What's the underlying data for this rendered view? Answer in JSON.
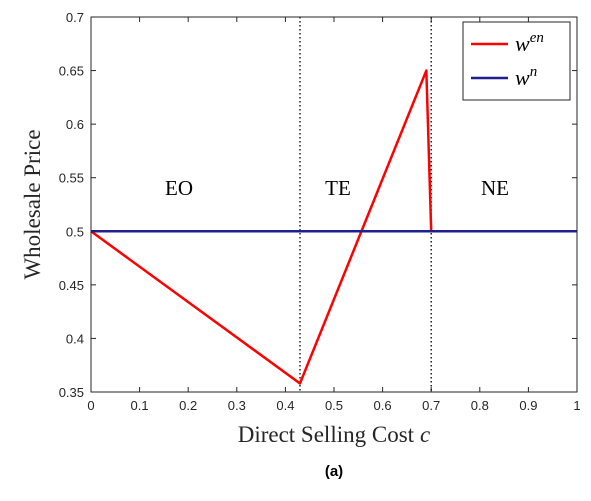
{
  "chart_data": {
    "type": "line",
    "ylabel": "Wholesale Price",
    "xlabel": "Direct Selling Cost",
    "xlabel_var": "c",
    "caption": "(a)",
    "xlim": [
      0,
      1
    ],
    "xticks": [
      0,
      0.1,
      0.2,
      0.3,
      0.4,
      0.5,
      0.6,
      0.7,
      0.8,
      0.9,
      1
    ],
    "ylim": [
      0.35,
      0.7
    ],
    "yticks": [
      0.35,
      0.4,
      0.45,
      0.5,
      0.55,
      0.6,
      0.65,
      0.7
    ],
    "vlines": [
      0.43,
      0.7
    ],
    "annotations": [
      {
        "text": "EO"
      },
      {
        "text": "TE"
      },
      {
        "text": "NE"
      }
    ],
    "legend": "top-right",
    "series": [
      {
        "name": "w",
        "name_sup": "en",
        "color": "#ff0000",
        "x": [
          0,
          0.43,
          0.69,
          0.7,
          1
        ],
        "values": [
          0.5,
          0.358,
          0.65,
          0.5,
          0.5
        ]
      },
      {
        "name": "w",
        "name_sup": "n",
        "color": "#1f1f8f",
        "x": [
          0,
          1
        ],
        "values": [
          0.5,
          0.5
        ]
      }
    ]
  }
}
